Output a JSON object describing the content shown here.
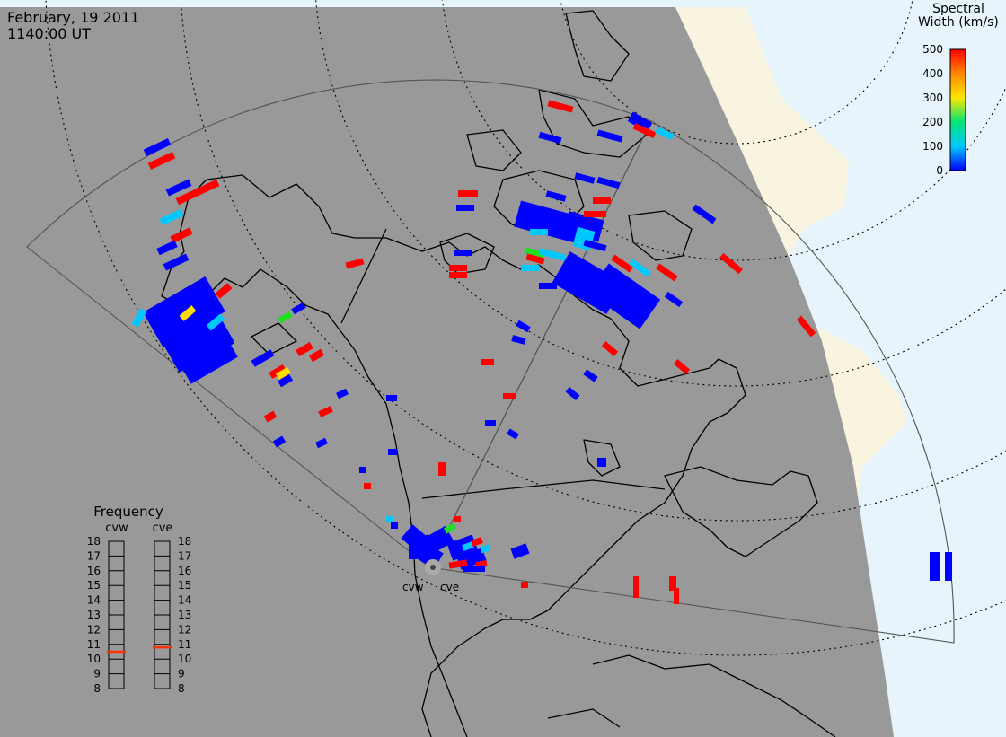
{
  "header": {
    "date": "February, 19 2011",
    "time": "1140:00 UT"
  },
  "colorbar": {
    "title_line1": "Spectral",
    "title_line2": "Width (km/s)",
    "ticks": [
      "500",
      "400",
      "300",
      "200",
      "100",
      "0"
    ],
    "gradient": [
      "#0000ff",
      "#00c8ff",
      "#00e676",
      "#ffe600",
      "#ff8800",
      "#ff0000"
    ]
  },
  "frequency_panel": {
    "title": "Frequency",
    "left_label": "cvw",
    "right_label": "cve",
    "ticks": [
      "18",
      "17",
      "16",
      "15",
      "14",
      "13",
      "12",
      "11",
      "10",
      "9",
      "8"
    ],
    "cvw_value": 10.5,
    "cve_value": 10.8,
    "marker_color": "#ff3300"
  },
  "radars": {
    "west_label": "cvw",
    "east_label": "cve"
  },
  "colors": {
    "night": "#999999",
    "day_land": "#f8f4e0",
    "day_ocean": "#e8f4fb",
    "scatter_low": "#0000ff",
    "scatter_high": "#ff0000"
  }
}
